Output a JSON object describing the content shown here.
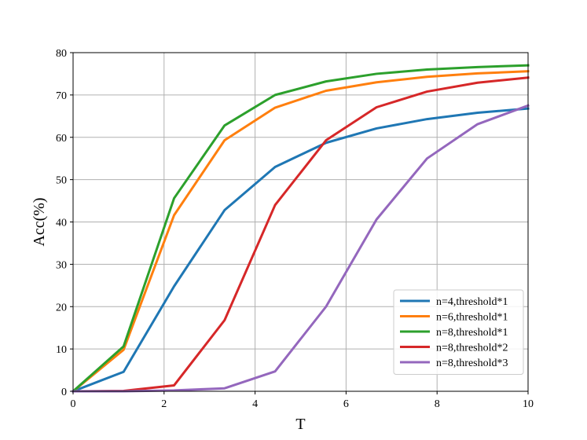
{
  "chart_data": {
    "type": "line",
    "xlabel": "T",
    "ylabel": "Acc(%)",
    "xlim": [
      0,
      10
    ],
    "ylim": [
      0,
      80
    ],
    "xticks": [
      0,
      2,
      4,
      6,
      8,
      10
    ],
    "yticks": [
      0,
      10,
      20,
      30,
      40,
      50,
      60,
      70,
      80
    ],
    "grid": true,
    "legend_position": "lower-right",
    "x": [
      0,
      1.11,
      2.22,
      3.33,
      4.44,
      5.56,
      6.67,
      7.78,
      8.89,
      10
    ],
    "series": [
      {
        "name": "n=4,threshold*1",
        "color": "#1f77b4",
        "values": [
          0,
          4.6,
          24.8,
          42.8,
          53.0,
          58.7,
          62.1,
          64.3,
          65.8,
          66.8
        ]
      },
      {
        "name": "n=6,threshold*1",
        "color": "#ff7f0e",
        "values": [
          0,
          9.8,
          41.6,
          59.3,
          67.0,
          71.0,
          73.0,
          74.3,
          75.1,
          75.6
        ]
      },
      {
        "name": "n=8,threshold*1",
        "color": "#2ca02c",
        "values": [
          0,
          10.6,
          45.6,
          62.8,
          70.0,
          73.2,
          75.0,
          76.0,
          76.6,
          77.0
        ]
      },
      {
        "name": "n=8,threshold*2",
        "color": "#d62728",
        "values": [
          0,
          0.1,
          1.4,
          16.8,
          44.0,
          59.3,
          67.1,
          70.8,
          72.9,
          74.1
        ]
      },
      {
        "name": "n=8,threshold*3",
        "color": "#9467bd",
        "values": [
          0,
          0,
          0.2,
          0.7,
          4.7,
          20.0,
          40.6,
          55.0,
          63.1,
          67.5
        ]
      }
    ]
  }
}
